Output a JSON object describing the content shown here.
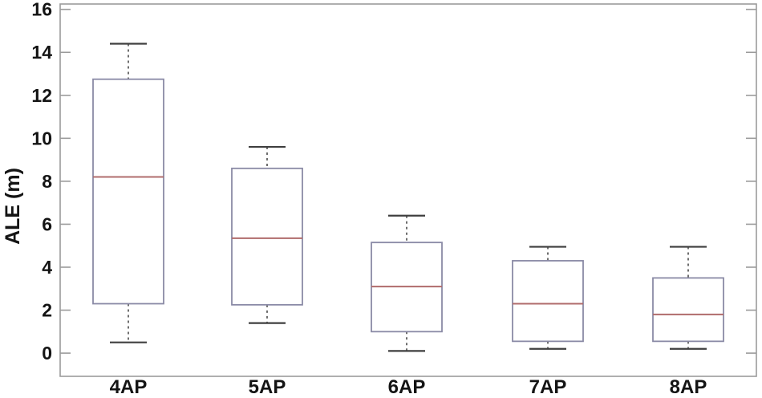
{
  "chart_data": {
    "type": "boxplot",
    "title": "",
    "xlabel": "",
    "ylabel": "ALE (m)",
    "categories": [
      "4AP",
      "5AP",
      "6AP",
      "7AP",
      "8AP"
    ],
    "yticks": [
      0,
      2,
      4,
      6,
      8,
      10,
      12,
      14,
      16
    ],
    "ylim": [
      -1.08,
      16.25
    ],
    "grid": false,
    "legend": "none",
    "boxes": [
      {
        "category": "4AP",
        "whisker_low": 0.5,
        "q1": 2.3,
        "median": 8.2,
        "q3": 12.75,
        "whisker_high": 14.4
      },
      {
        "category": "5AP",
        "whisker_low": 1.4,
        "q1": 2.25,
        "median": 5.35,
        "q3": 8.6,
        "whisker_high": 9.6
      },
      {
        "category": "6AP",
        "whisker_low": 0.1,
        "q1": 1.0,
        "median": 3.1,
        "q3": 5.15,
        "whisker_high": 6.4
      },
      {
        "category": "7AP",
        "whisker_low": 0.2,
        "q1": 0.55,
        "median": 2.3,
        "q3": 4.3,
        "whisker_high": 4.95
      },
      {
        "category": "8AP",
        "whisker_low": 0.2,
        "q1": 0.55,
        "median": 1.8,
        "q3": 3.5,
        "whisker_high": 4.95
      }
    ],
    "colors": {
      "box_edge": "#8a8aa6",
      "median": "#b06c6c",
      "whisker": "#4a4a4a",
      "cap": "#3f3f3f",
      "axis": "#9b9b9b",
      "text": "#141414",
      "background": "#ffffff"
    }
  }
}
